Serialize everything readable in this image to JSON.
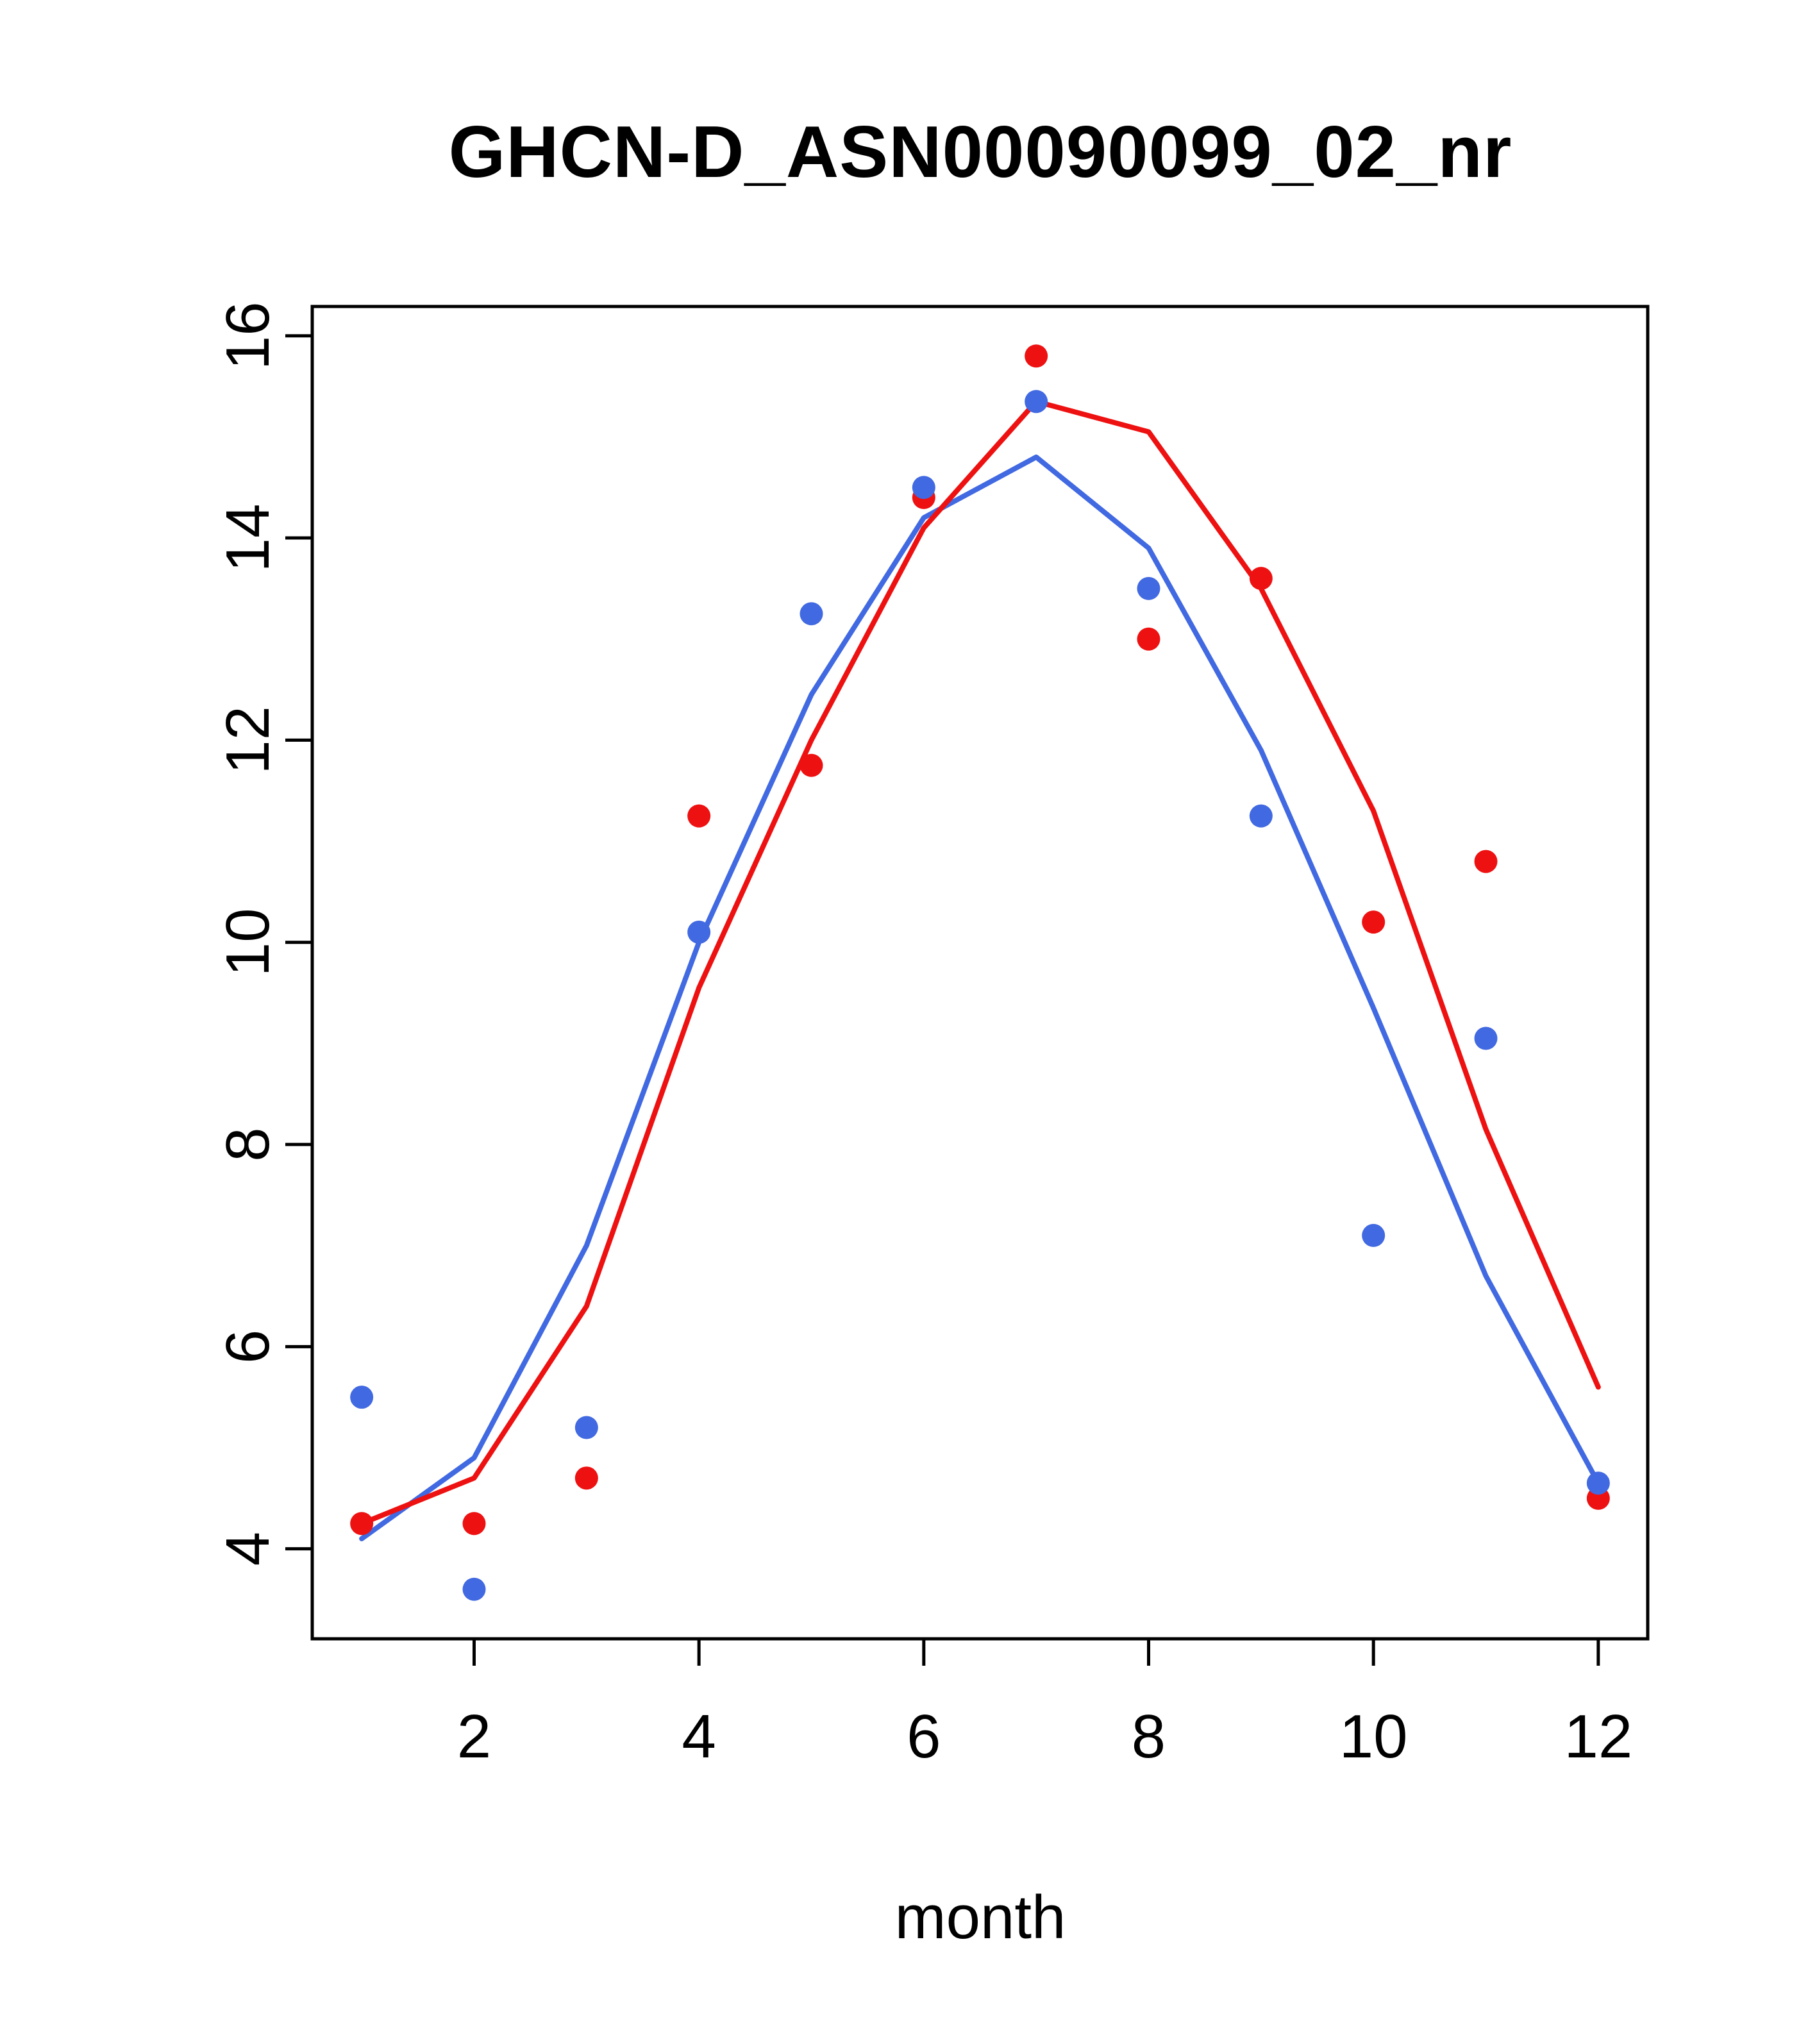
{
  "figure": {
    "background": "#ffffff",
    "text_color": "#000000"
  },
  "chart_data": {
    "type": "line",
    "title": "GHCN-D_ASN00090099_02_nr",
    "xlabel": "month",
    "ylabel": "",
    "grid": false,
    "legend": "none",
    "xlim": [
      0.56,
      12.44
    ],
    "ylim": [
      3.11,
      16.29
    ],
    "x_ticks": [
      2,
      4,
      6,
      8,
      10,
      12
    ],
    "y_ticks": [
      4,
      6,
      8,
      10,
      12,
      14,
      16
    ],
    "months": [
      1,
      2,
      3,
      4,
      5,
      6,
      7,
      8,
      9,
      10,
      11,
      12
    ],
    "colors": {
      "blue": "#4169e1",
      "red": "#ee1111",
      "axis": "#000000"
    },
    "series": [
      {
        "name": "blue-line",
        "kind": "line",
        "color": "#4169e1",
        "values": [
          4.1,
          4.9,
          7.0,
          10.0,
          12.45,
          14.2,
          14.8,
          13.9,
          11.9,
          9.35,
          6.7,
          4.65
        ]
      },
      {
        "name": "red-line",
        "kind": "line",
        "color": "#ee1111",
        "values": [
          4.25,
          4.7,
          6.4,
          9.55,
          12.0,
          14.1,
          15.35,
          15.05,
          13.5,
          11.3,
          8.15,
          5.6
        ]
      },
      {
        "name": "red-points",
        "kind": "points",
        "color": "#ee1111",
        "values": [
          4.25,
          4.25,
          4.7,
          11.25,
          11.75,
          14.4,
          15.8,
          13.0,
          13.6,
          10.2,
          10.8,
          4.5
        ]
      },
      {
        "name": "blue-points",
        "kind": "points",
        "color": "#4169e1",
        "values": [
          5.5,
          3.6,
          5.2,
          10.1,
          13.25,
          14.5,
          15.35,
          13.5,
          11.25,
          7.1,
          9.05,
          4.65
        ]
      }
    ]
  }
}
